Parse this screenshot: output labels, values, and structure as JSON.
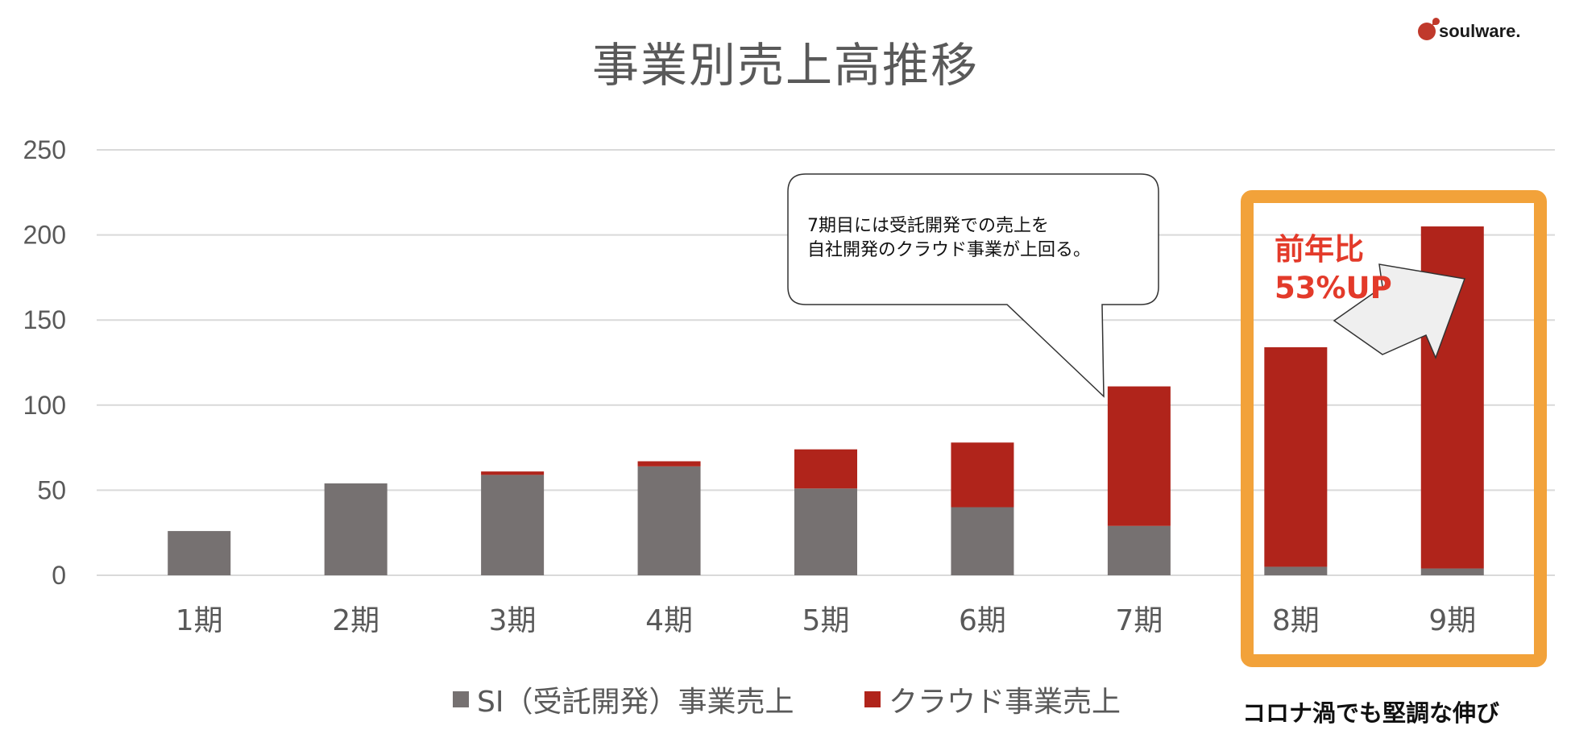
{
  "logo": {
    "text": "soulware."
  },
  "annotations": {
    "callout": "7期目には受託開発での売上を\n自社開発のクラウド事業が上回る。",
    "growth_line1": "前年比",
    "growth_line2": "53%UP",
    "highlight_note": "コロナ渦でも堅調な伸び"
  },
  "colors": {
    "si": "#767171",
    "cloud": "#b0241b",
    "highlight": "#f2a23a",
    "growth_text": "#e33a2a",
    "grid": "#d9d9d9",
    "text": "#595959"
  },
  "chart_data": {
    "type": "bar",
    "stacked": true,
    "title": "事業別売上高推移",
    "categories": [
      "1期",
      "2期",
      "3期",
      "4期",
      "5期",
      "6期",
      "7期",
      "8期",
      "9期"
    ],
    "series": [
      {
        "name": "SI（受託開発）事業売上",
        "values": [
          26,
          54,
          59,
          64,
          51,
          40,
          29,
          5,
          4
        ]
      },
      {
        "name": "クラウド事業売上",
        "values": [
          0,
          0,
          2,
          3,
          23,
          38,
          82,
          129,
          201
        ]
      }
    ],
    "ylim": [
      0,
      250
    ],
    "yticks": [
      0,
      50,
      100,
      150,
      200,
      250
    ],
    "grid": true,
    "legend": "bottom-center"
  }
}
